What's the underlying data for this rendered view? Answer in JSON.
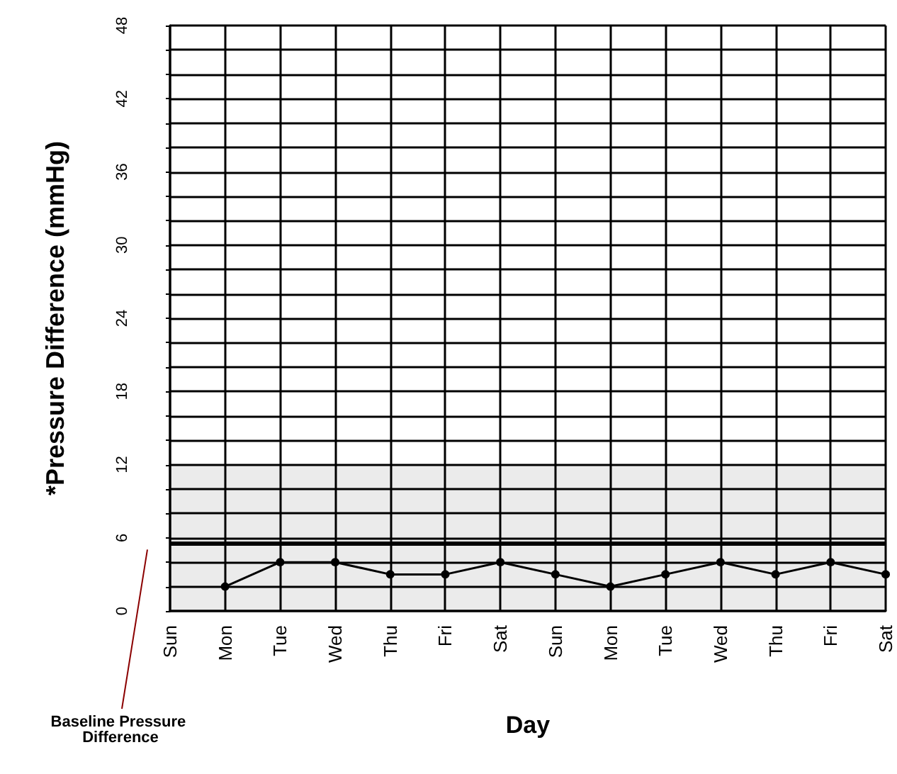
{
  "chart_data": {
    "type": "line",
    "xlabel": "Day",
    "ylabel": "*Pressure Difference (mmHg)",
    "categories": [
      "Sun",
      "Mon",
      "Tue",
      "Wed",
      "Thu",
      "Fri",
      "Sat",
      "Sun",
      "Mon",
      "Tue",
      "Wed",
      "Thu",
      "Fri",
      "Sat"
    ],
    "series": [
      {
        "color": "#000000",
        "values": [
          null,
          2,
          4,
          4,
          3,
          3,
          4,
          3,
          2,
          3,
          4,
          3,
          4,
          3
        ]
      }
    ],
    "ylim": [
      0,
      48
    ],
    "yticks": [
      0,
      {
        "value": 2,
        "label": null
      },
      {
        "value": 4,
        "label": null
      },
      6,
      {
        "value": 8,
        "label": null
      },
      {
        "value": 10,
        "label": null
      },
      12,
      {
        "value": 14,
        "label": null
      },
      {
        "value": 16,
        "label": null
      },
      18,
      {
        "value": 20,
        "label": null
      },
      {
        "value": 22,
        "label": null
      },
      24,
      {
        "value": 26,
        "label": null
      },
      {
        "value": 28,
        "label": null
      },
      30,
      {
        "value": 32,
        "label": null
      },
      {
        "value": 34,
        "label": null
      },
      36,
      {
        "value": 38,
        "label": null
      },
      {
        "value": 40,
        "label": null
      },
      42,
      {
        "value": 44,
        "label": null
      },
      {
        "value": 46,
        "label": null
      },
      48
    ],
    "ref_lines": [
      {
        "axis": "y",
        "value": 5.5,
        "label": "Baseline Pressure Difference",
        "color": "#000000"
      }
    ],
    "bands": [
      {
        "axis": "y",
        "from": 0,
        "to": 12,
        "color": "#ebebeb"
      }
    ],
    "grid": true,
    "marker": "circle",
    "line_style": "solid"
  }
}
